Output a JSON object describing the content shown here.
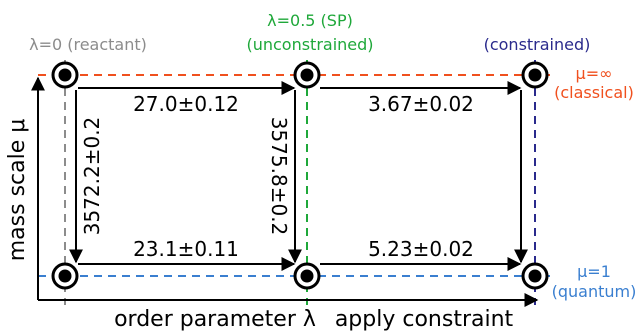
{
  "colors": {
    "gray": "#8c8c8c",
    "green": "#1fa83a",
    "navy": "#2a2a8c",
    "orange": "#f0501e",
    "blue": "#3a7fd0",
    "black": "#000000"
  },
  "column_labels": {
    "reactant": "λ=0 (reactant)",
    "sp_line1": "λ=0.5 (SP)",
    "sp_line2": "(unconstrained)",
    "constrained": "(constrained)"
  },
  "row_labels": {
    "classical_line1": "μ=∞",
    "classical_line2": "(classical)",
    "quantum_line1": "μ=1",
    "quantum_line2": "(quantum)"
  },
  "edges": {
    "top_left": "27.0±0.12",
    "top_right": "3.67±0.02",
    "bottom_left": "23.1±0.11",
    "bottom_right": "5.23±0.02",
    "vertical_left": "3572.2±0.2",
    "vertical_middle": "3575.8±0.2"
  },
  "axes": {
    "y_label": "mass scale μ",
    "x_label": "order parameter λ",
    "x_label2": "apply constraint"
  }
}
